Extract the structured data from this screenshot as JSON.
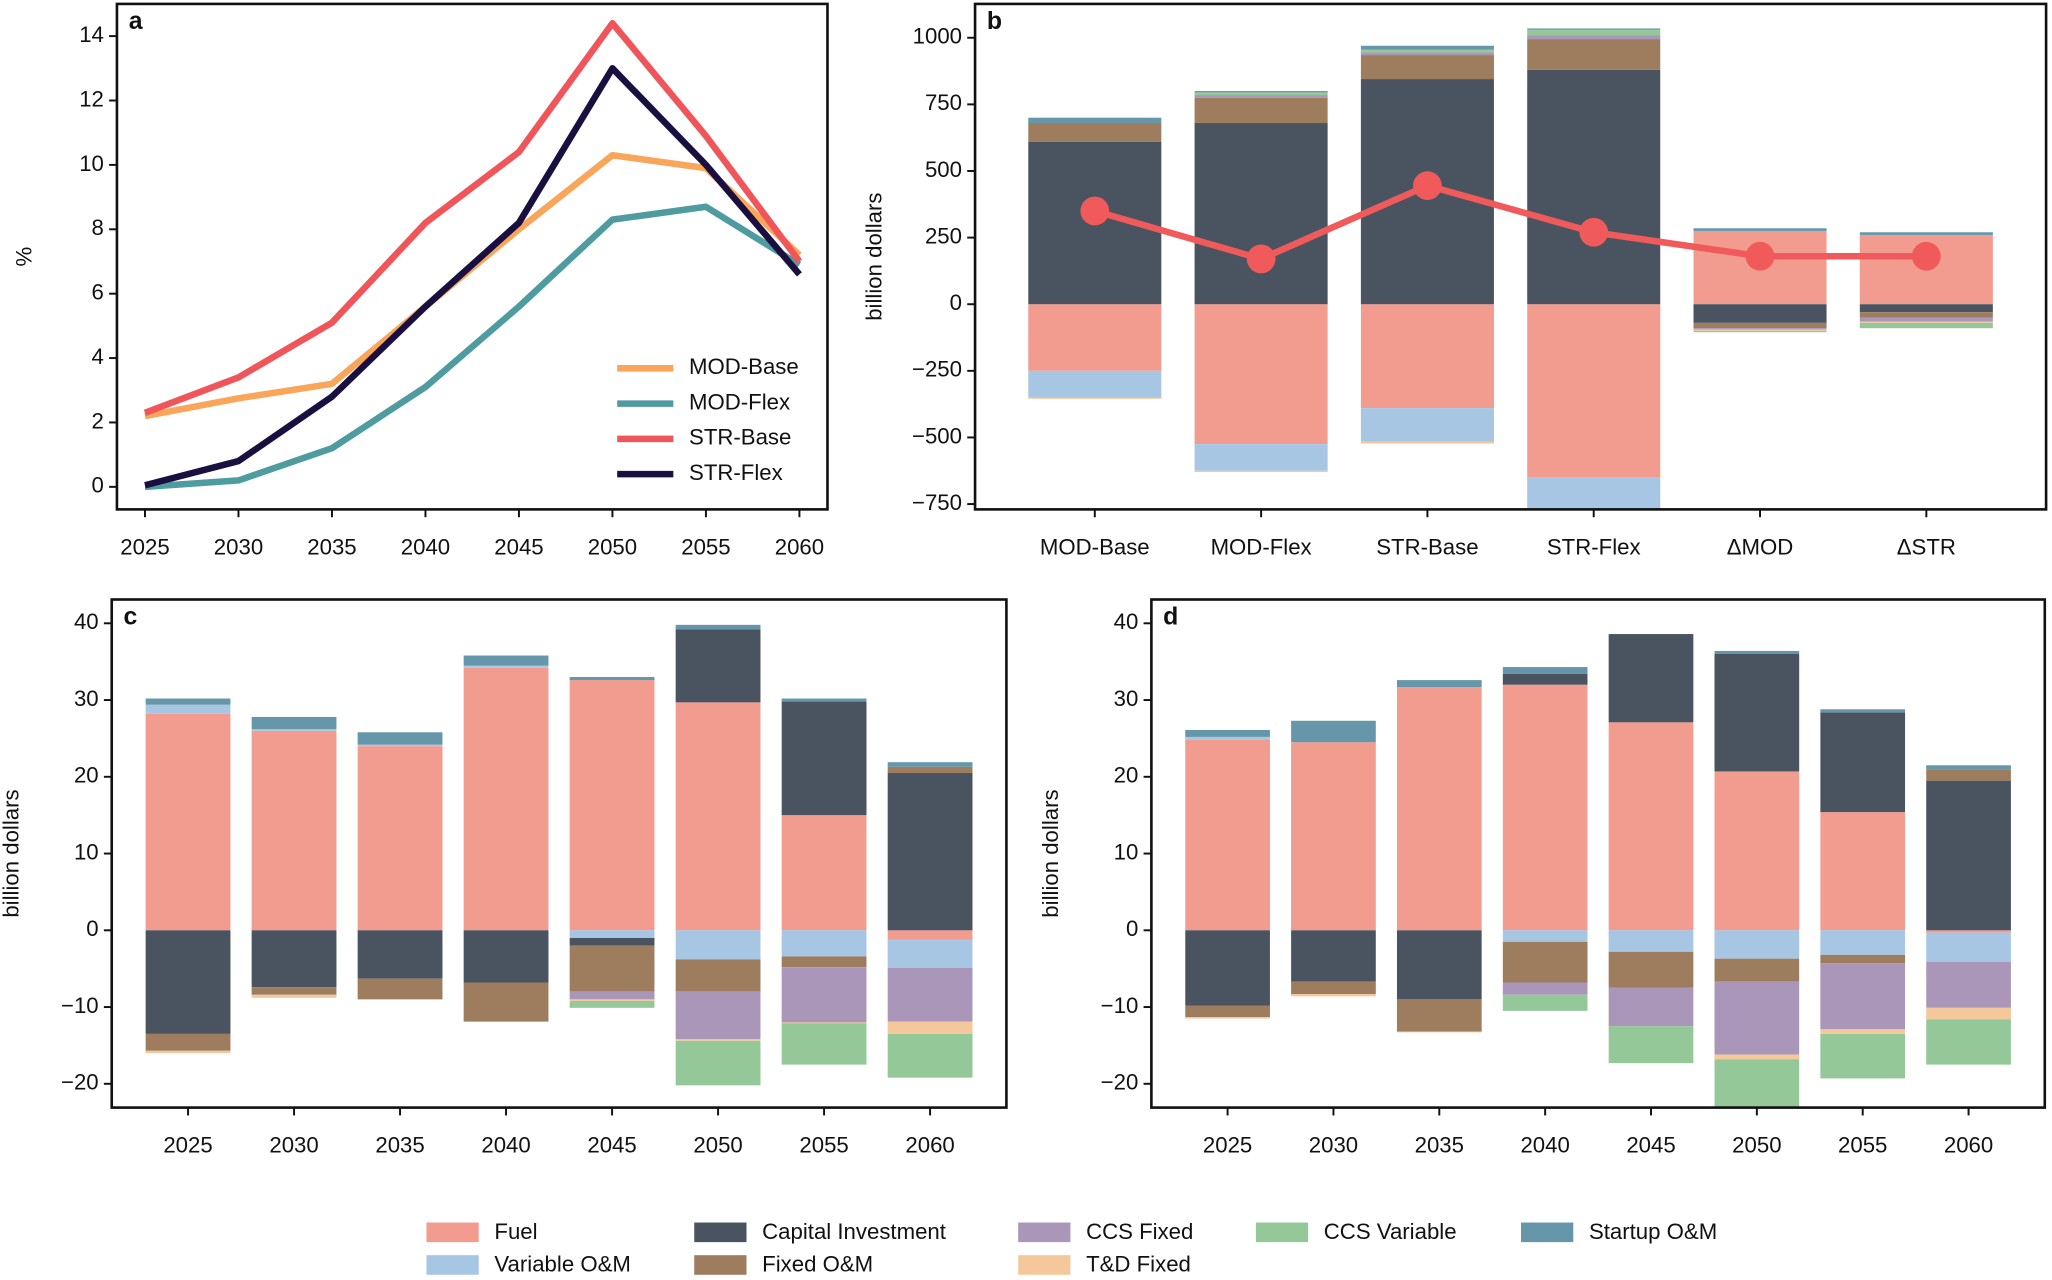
{
  "chart_data": [
    {
      "type": "line",
      "label": "a",
      "ylabel": "%",
      "x": [
        2025,
        2030,
        2035,
        2040,
        2045,
        2050,
        2055,
        2060
      ],
      "xlim": [
        2023.5,
        2061.5
      ],
      "xticks": [
        2025,
        2030,
        2035,
        2040,
        2045,
        2050,
        2055,
        2060
      ],
      "ylim": [
        -0.7,
        15
      ],
      "yticks": [
        0,
        2,
        4,
        6,
        8,
        10,
        12,
        14
      ],
      "legend": "lower right",
      "series": [
        {
          "name": "MOD-Base",
          "color": "#f9a65a",
          "values": [
            2.2,
            2.75,
            3.2,
            5.6,
            8.0,
            10.3,
            9.9,
            7.2
          ]
        },
        {
          "name": "MOD-Flex",
          "color": "#4e9ca0",
          "values": [
            0,
            0.2,
            1.2,
            3.1,
            5.6,
            8.3,
            8.7,
            6.9
          ]
        },
        {
          "name": "STR-Base",
          "color": "#f0555a",
          "values": [
            2.3,
            3.4,
            5.1,
            8.2,
            10.4,
            14.4,
            10.9,
            7.0
          ]
        },
        {
          "name": "STR-Flex",
          "color": "#1a1040",
          "values": [
            0.05,
            0.8,
            2.8,
            5.6,
            8.2,
            13.0,
            10.0,
            6.6
          ]
        }
      ]
    },
    {
      "type": "stacked_bar",
      "label": "b",
      "ylabel": "billion dollars",
      "categories": [
        "MOD-Base",
        "MOD-Flex",
        "STR-Base",
        "STR-Flex",
        "ΔMOD",
        "ΔSTR"
      ],
      "ylim": [
        -770,
        1127
      ],
      "yticks": [
        {
          "value": -750,
          "label": "−750"
        },
        {
          "value": -500,
          "label": "−500"
        },
        {
          "value": -250,
          "label": "−250"
        },
        0,
        250,
        500,
        750,
        1000
      ],
      "series": [
        {
          "values": [
            -250,
            -525,
            -390,
            -650,
            275,
            260
          ]
        },
        {
          "values": [
            -100,
            -100,
            -125,
            -130,
            0,
            0
          ]
        },
        {
          "values": [
            610,
            680,
            845,
            880,
            -70,
            -30
          ]
        },
        {
          "values": [
            70,
            95,
            90,
            115,
            -20,
            -20
          ]
        },
        {
          "values": [
            0,
            10,
            10,
            15,
            -5,
            -15
          ]
        },
        {
          "values": [
            -5,
            -5,
            -8,
            0,
            -5,
            -5
          ]
        },
        {
          "values": [
            0,
            10,
            10,
            20,
            -5,
            -20
          ]
        },
        {
          "values": [
            20,
            5,
            15,
            5,
            10,
            10
          ]
        }
      ],
      "line": {
        "color": "#f05a5a",
        "values": [
          350,
          170,
          445,
          270,
          180,
          180
        ]
      }
    },
    {
      "type": "stacked_bar",
      "label": "c",
      "ylabel": "billion dollars",
      "categories": [
        "2025",
        "2030",
        "2035",
        "2040",
        "2045",
        "2050",
        "2055",
        "2060"
      ],
      "ylim": [
        -23.1,
        43.1
      ],
      "yticks": [
        {
          "value": -20,
          "label": "−20"
        },
        {
          "value": -10,
          "label": "−10"
        },
        0,
        10,
        20,
        30,
        40
      ],
      "series": [
        {
          "values": [
            28.2,
            26,
            24,
            34.2,
            32.6,
            29.7,
            15,
            -1.2
          ]
        },
        {
          "values": [
            1.2,
            0.2,
            0.2,
            0.3,
            -1,
            -3.8,
            -3.4,
            -3.7
          ]
        },
        {
          "values": [
            -13.5,
            -7.4,
            -6.3,
            -6.8,
            -1,
            9.5,
            14.8,
            20.5
          ]
        },
        {
          "values": [
            -2.2,
            -1,
            -2.7,
            -5.1,
            -6,
            -4.2,
            -1.4,
            0.8
          ]
        },
        {
          "values": [
            0,
            0,
            0,
            0,
            -1,
            -6.2,
            -7.2,
            -7
          ]
        },
        {
          "values": [
            -0.3,
            -0.4,
            0,
            0,
            -0.2,
            -0.2,
            -0.1,
            -1.6
          ]
        },
        {
          "values": [
            0,
            0,
            0,
            0,
            -0.9,
            -5.8,
            -5.4,
            -5.7
          ]
        },
        {
          "values": [
            0.8,
            1.6,
            1.6,
            1.3,
            0.4,
            0.6,
            0.4,
            0.6
          ]
        }
      ]
    },
    {
      "type": "stacked_bar",
      "label": "d",
      "ylabel": "billion dollars",
      "categories": [
        "2025",
        "2030",
        "2035",
        "2040",
        "2045",
        "2050",
        "2055",
        "2060"
      ],
      "ylim": [
        -23.1,
        43.1
      ],
      "yticks": [
        {
          "value": -20,
          "label": "−20"
        },
        {
          "value": -10,
          "label": "−10"
        },
        0,
        10,
        20,
        30,
        40
      ],
      "series": [
        {
          "values": [
            24.8,
            24.5,
            31.7,
            32,
            27.1,
            20.7,
            15.4,
            -0.3
          ]
        },
        {
          "values": [
            0.4,
            0,
            0,
            -1.5,
            -2.8,
            -3.7,
            -3.2,
            -3.8
          ]
        },
        {
          "values": [
            -9.8,
            -6.7,
            -9,
            1.4,
            11.5,
            15.3,
            13,
            19.5
          ]
        },
        {
          "values": [
            -1.5,
            -1.6,
            -4.2,
            -5.3,
            -4.7,
            -3,
            -1.1,
            1.4
          ]
        },
        {
          "values": [
            0,
            0,
            0,
            -1.6,
            -5,
            -9.5,
            -8.6,
            -6
          ]
        },
        {
          "values": [
            -0.2,
            -0.3,
            -0.1,
            0,
            0,
            -0.6,
            -0.6,
            -1.5
          ]
        },
        {
          "values": [
            0,
            0,
            0,
            -2.1,
            -4.8,
            -6.5,
            -5.8,
            -5.9
          ]
        },
        {
          "values": [
            0.9,
            2.8,
            0.9,
            0.9,
            0,
            0.4,
            0.4,
            0.6
          ]
        }
      ]
    }
  ],
  "legend": {
    "columns": 5,
    "series": [
      {
        "name": "Fuel",
        "color": "#f29b8f"
      },
      {
        "name": "Variable O&M",
        "color": "#a6c6e4"
      },
      {
        "name": "Capital Investment",
        "color": "#4a5461"
      },
      {
        "name": "Fixed O&M",
        "color": "#9e7d5f"
      },
      {
        "name": "CCS Fixed",
        "color": "#a996b8"
      },
      {
        "name": "T&D Fixed",
        "color": "#f4c89a"
      },
      {
        "name": "CCS Variable",
        "color": "#95c899"
      },
      {
        "name": "Startup O&M",
        "color": "#6596aa"
      }
    ]
  }
}
